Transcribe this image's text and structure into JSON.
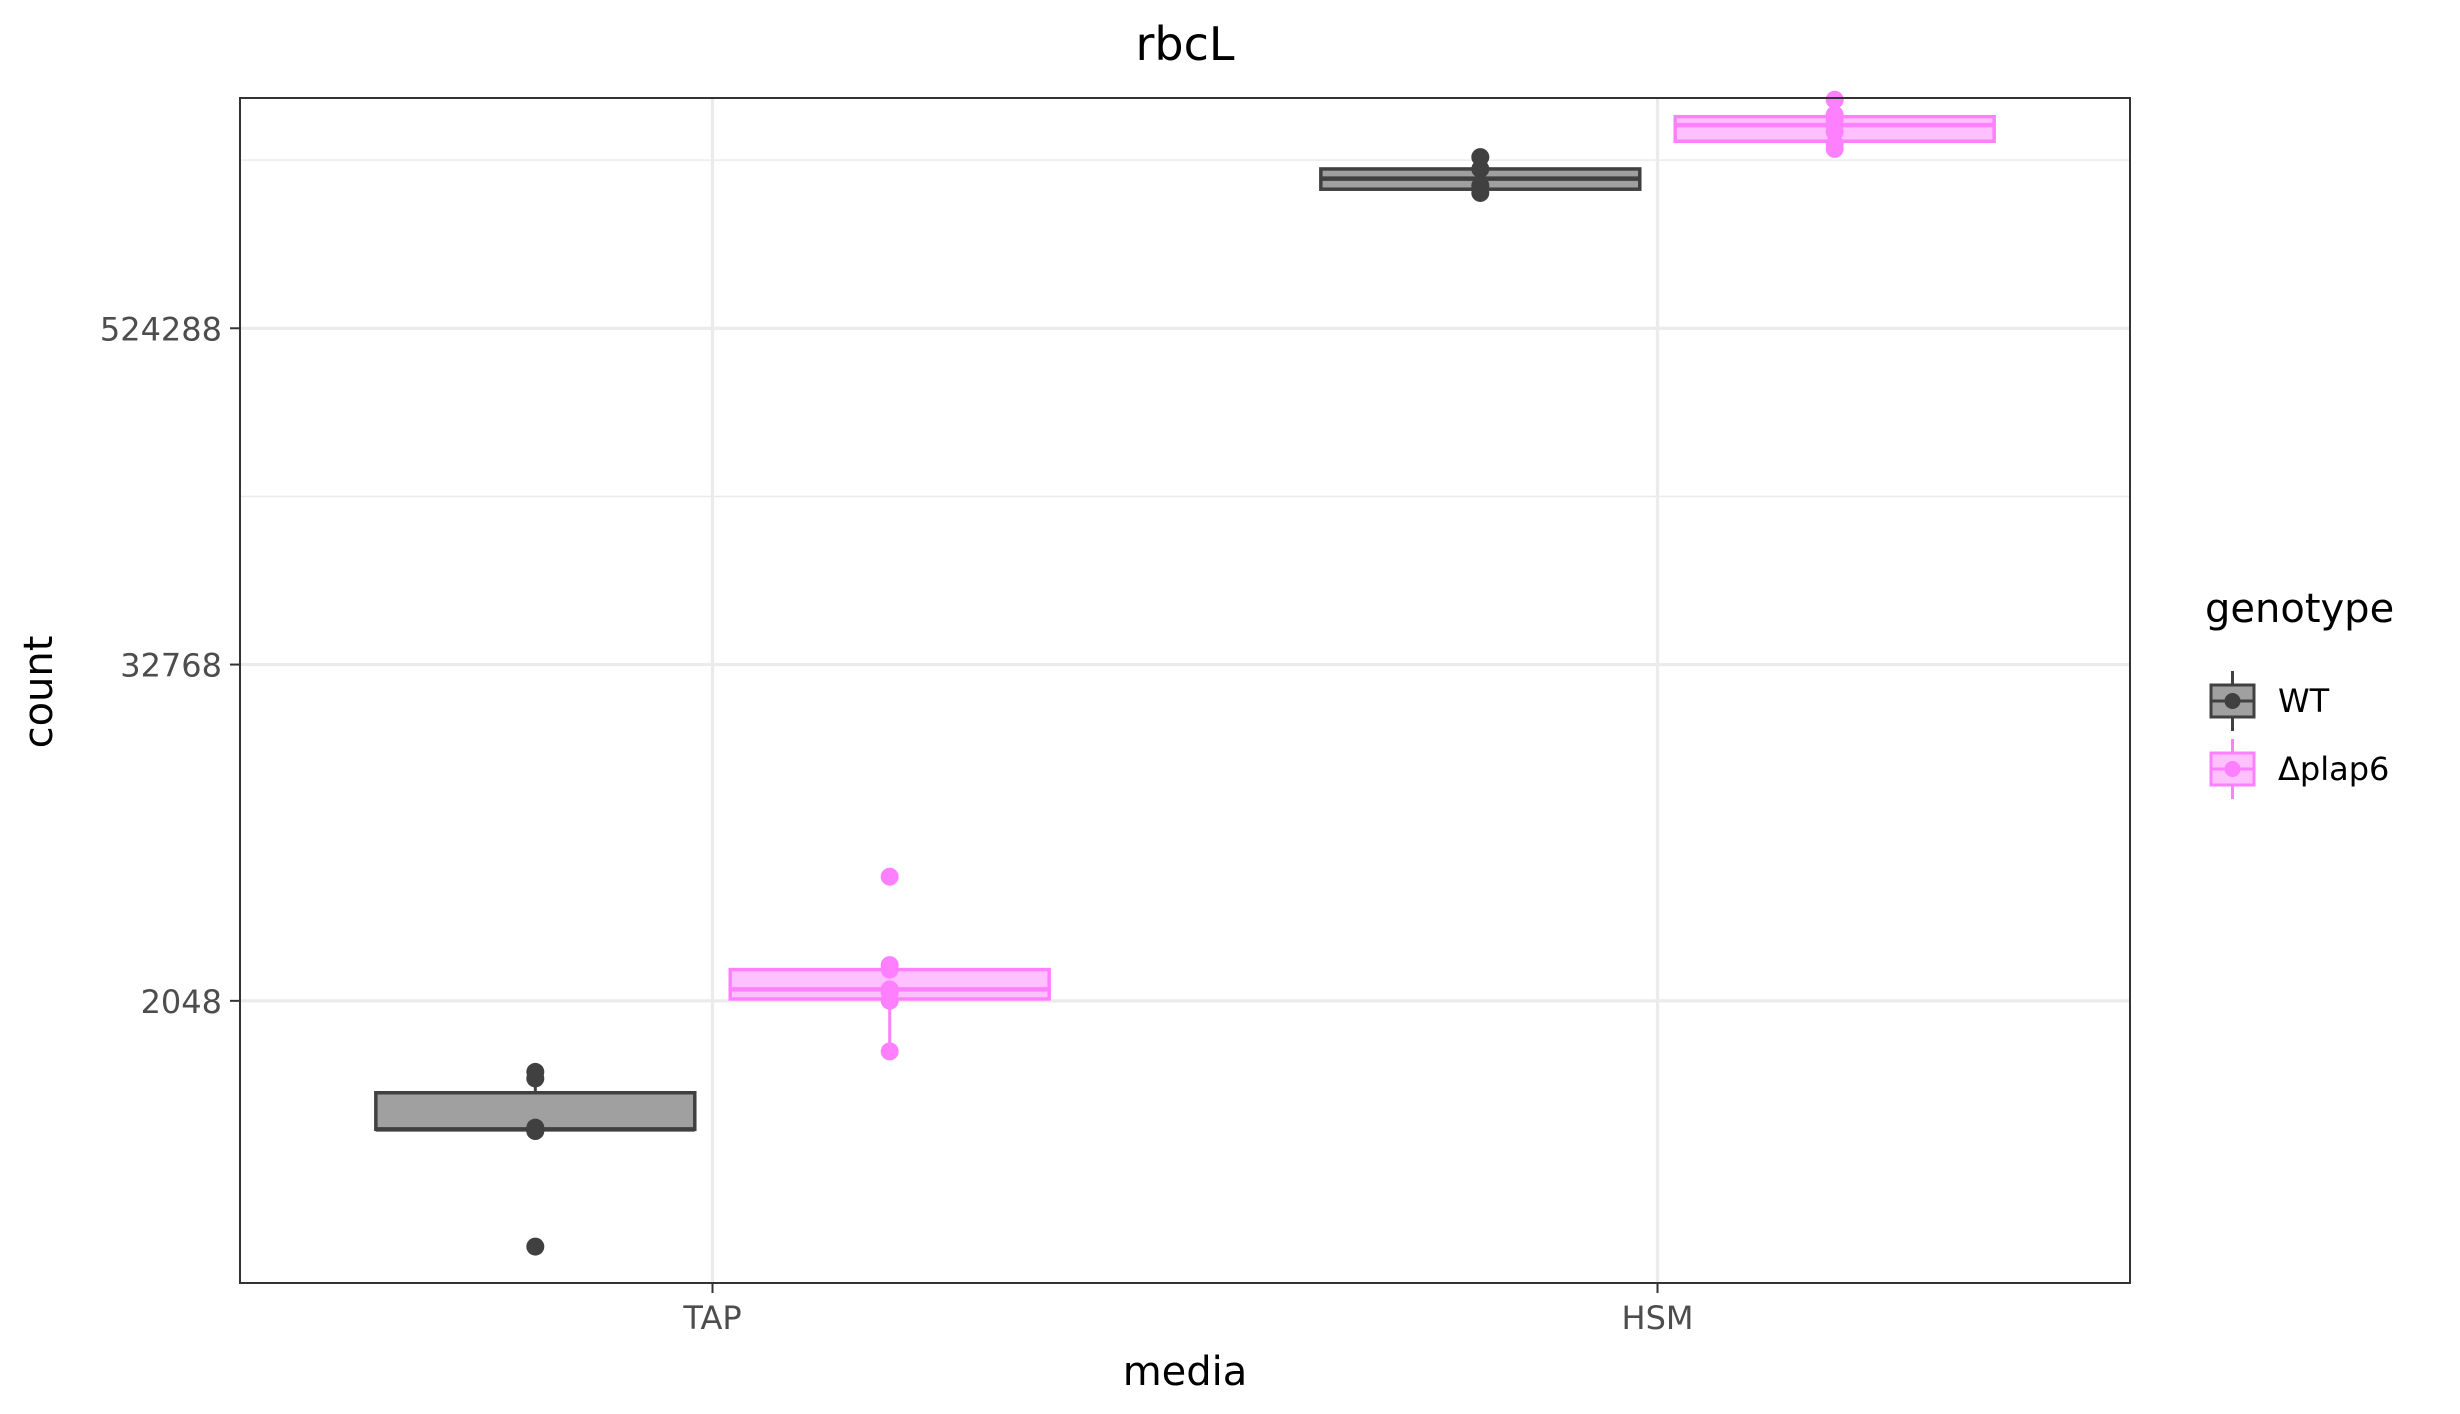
{
  "chart_data": {
    "type": "box",
    "title": "rbcL",
    "xlabel": "media",
    "ylabel": "count",
    "y_scale": "log2",
    "ylim": [
      200,
      3500000
    ],
    "categories": [
      "TAP",
      "HSM"
    ],
    "y_ticks": [
      2048,
      32768,
      524288
    ],
    "y_tick_labels": [
      "2048",
      "32768",
      "524288"
    ],
    "grid": true,
    "legend": {
      "title": "genotype",
      "position": "right",
      "entries": [
        "WT",
        "Δplap6"
      ]
    },
    "series": [
      {
        "name": "WT",
        "color": "#404040",
        "fill": "#a0a0a0",
        "boxes": [
          {
            "category": "TAP",
            "min": 710,
            "q1": 710,
            "median": 710,
            "q3": 960,
            "max": 1150,
            "points": [
              270,
              700,
              720,
              1080,
              1140
            ]
          },
          {
            "category": "HSM",
            "min": 1650000,
            "q1": 1650000,
            "median": 1800000,
            "q3": 1950000,
            "max": 2150000,
            "points": [
              1600000,
              1700000,
              1950000,
              2150000
            ]
          }
        ]
      },
      {
        "name": "Δplap6",
        "color": "#ff80ff",
        "fill": "#ffc0ff",
        "boxes": [
          {
            "category": "TAP",
            "min": 1350,
            "q1": 2080,
            "median": 2250,
            "q3": 2650,
            "max": 2700,
            "points": [
              1350,
              2050,
              2200,
              2250,
              2650,
              2750,
              5700
            ]
          },
          {
            "category": "HSM",
            "min": 2350000,
            "q1": 2450000,
            "median": 2800000,
            "q3": 3000000,
            "max": 3200000,
            "points": [
              2300000,
              2400000,
              2650000,
              2800000,
              2900000,
              3050000,
              3450000
            ]
          }
        ]
      }
    ]
  }
}
